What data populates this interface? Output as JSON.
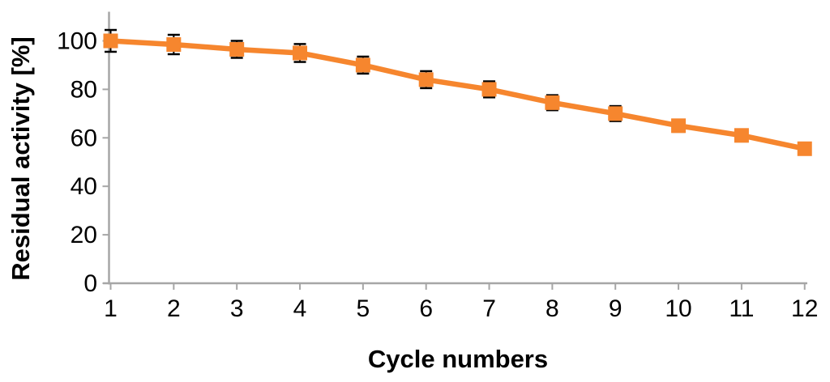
{
  "chart_data": {
    "type": "line",
    "title": "",
    "xlabel": "Cycle numbers",
    "ylabel": "Residual activity [%]",
    "x": [
      1,
      2,
      3,
      4,
      5,
      6,
      7,
      8,
      9,
      10,
      11,
      12
    ],
    "x_tick_labels": [
      "1",
      "2",
      "3",
      "4",
      "5",
      "6",
      "7",
      "8",
      "9",
      "10",
      "11",
      "12"
    ],
    "series": [
      {
        "name": "Residual activity",
        "values": [
          100,
          98.5,
          96.5,
          95,
          90,
          84,
          80,
          74.5,
          70,
          65,
          61,
          55.5
        ],
        "errors": [
          4.5,
          4,
          3.5,
          3.7,
          3.5,
          3.5,
          3.3,
          3.1,
          3.1,
          2.5,
          2.5,
          2.5
        ]
      }
    ],
    "yticks": [
      0,
      20,
      40,
      60,
      80,
      100
    ],
    "ylim": [
      0,
      112
    ],
    "xlim": [
      1,
      12
    ],
    "grid": false,
    "legend": "none",
    "marker": "square",
    "colors": {
      "series": "#F6862E",
      "error_bars": "#000000",
      "axis": "#A6A6A6",
      "text": "#000000",
      "background": "#FFFFFF"
    }
  }
}
